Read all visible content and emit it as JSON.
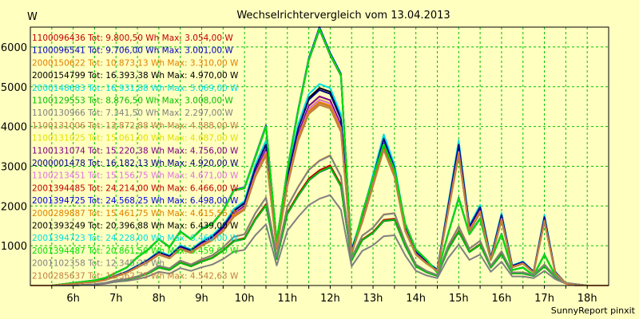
{
  "chart_data": {
    "type": "line",
    "title": "Wechselrichtervergleich vom 13.04.2013",
    "ylabel": "W",
    "xlabel": "",
    "ylim": [
      0,
      6500
    ],
    "xlim": [
      "05:30",
      "19:00"
    ],
    "y_ticks": [
      "1000",
      "2000",
      "3000",
      "4000",
      "5000",
      "6000"
    ],
    "x_ticks": [
      "6h",
      "7h",
      "8h",
      "9h",
      "10h",
      "11h",
      "12h",
      "13h",
      "14h",
      "15h",
      "16h",
      "17h",
      "18h"
    ],
    "grid": true,
    "background": "#ffffc0",
    "grid_color": "#00c000",
    "legend_position": "top-left",
    "credit": "SunnyReport pinxit",
    "series": [
      {
        "name": "1100096436 Tot: 9.800,50 Wh Max: 3.054,00 W",
        "color": "#c00000",
        "max": 3054,
        "profile": "A"
      },
      {
        "name": "1100096541 Tot: 9.706,00 Wh Max: 3.001,00 W",
        "color": "#0000c0",
        "max": 3001,
        "profile": "A"
      },
      {
        "name": "2000150622 Tot: 10.873,13 Wh Max: 3.310,00 W",
        "color": "#e08000",
        "max": 3310,
        "profile": "A"
      },
      {
        "name": "2000154799 Tot: 16.393,38 Wh Max: 4.970,00 W",
        "color": "#000000",
        "max": 4970,
        "profile": "B"
      },
      {
        "name": "2000148683 Tot: 16.931,88 Wh Max: 5.069,00 W",
        "color": "#00e0e0",
        "max": 5069,
        "profile": "B"
      },
      {
        "name": "1100129553 Tot: 8.876,50 Wh Max: 3.008,00 W",
        "color": "#00c000",
        "max": 3008,
        "profile": "A"
      },
      {
        "name": "1100130966 Tot: 7.341,50 Wh Max: 2.297,00 W",
        "color": "#808080",
        "max": 2297,
        "profile": "A"
      },
      {
        "name": "1100131006 Tot: 13.872,88 Wh Max: 4.588,00 W",
        "color": "#c08040",
        "max": 4588,
        "profile": "B"
      },
      {
        "name": "1100131025 Tot: 15.061,00 Wh Max: 4.687,00 W",
        "color": "#e0e000",
        "max": 4687,
        "profile": "B"
      },
      {
        "name": "1100131074 Tot: 15.220,38 Wh Max: 4.756,00 W",
        "color": "#800080",
        "max": 4756,
        "profile": "B"
      },
      {
        "name": "2000001478 Tot: 16.182,13 Wh Max: 4.920,00 W",
        "color": "#000080",
        "max": 4920,
        "profile": "B"
      },
      {
        "name": "1100213451 Tot: 15.156,75 Wh Max: 4.671,00 W",
        "color": "#e070e0",
        "max": 4671,
        "profile": "B"
      },
      {
        "name": "2001394485 Tot: 24.214,00 Wh Max: 6.466,00 W",
        "color": "#c00000",
        "max": 6466,
        "profile": "C"
      },
      {
        "name": "2001394725 Tot: 24.568,25 Wh Max: 6.498,00 W",
        "color": "#0000e0",
        "max": 6498,
        "profile": "C"
      },
      {
        "name": "2000289887 Tot: 15.461,75 Wh Max: 4.615,56 W",
        "color": "#e08000",
        "max": 4615.56,
        "profile": "B"
      },
      {
        "name": "2001393249 Tot: 20.396,88 Wh Max: 6.439,00 W",
        "color": "#000000",
        "max": 6439,
        "profile": "C"
      },
      {
        "name": "2001394723 Tot: 24.228,00 Wh Max: 6.460,00 W",
        "color": "#00e0e0",
        "max": 6460,
        "profile": "C"
      },
      {
        "name": "2001394487 Tot: 20.861,50 Wh Max: 6.459,00 W",
        "color": "#00e000",
        "max": 6459,
        "profile": "C"
      },
      {
        "name": "2001102358 Tot: 12.345,25 Wh",
        "color": "#808080",
        "max": 3300,
        "profile": "A"
      },
      {
        "name": "2100285637 Tot: 16.362,75 Wh Max: 4.542,63 W",
        "color": "#c08040",
        "max": 4542.63,
        "profile": "B"
      }
    ],
    "profiles": {
      "x": [
        "05:30",
        "06:00",
        "06:30",
        "07:00",
        "07:15",
        "07:30",
        "07:45",
        "08:00",
        "08:15",
        "08:30",
        "08:45",
        "09:00",
        "09:15",
        "09:30",
        "09:45",
        "10:00",
        "10:15",
        "10:30",
        "10:45",
        "11:00",
        "11:15",
        "11:30",
        "11:45",
        "12:00",
        "12:15",
        "12:30",
        "12:45",
        "13:00",
        "13:15",
        "13:30",
        "13:45",
        "14:00",
        "14:15",
        "14:30",
        "14:45",
        "15:00",
        "15:15",
        "15:30",
        "15:45",
        "16:00",
        "16:15",
        "16:30",
        "16:45",
        "17:00",
        "17:15",
        "17:30",
        "17:45",
        "18:00",
        "18:15",
        "18:30",
        "19:00"
      ],
      "A": [
        0.0,
        0.0,
        0.0,
        0.01,
        0.02,
        0.04,
        0.05,
        0.07,
        0.1,
        0.15,
        0.13,
        0.19,
        0.16,
        0.2,
        0.23,
        0.29,
        0.37,
        0.39,
        0.55,
        0.67,
        0.22,
        0.6,
        0.75,
        0.88,
        0.95,
        0.99,
        0.83,
        0.21,
        0.38,
        0.44,
        0.54,
        0.55,
        0.33,
        0.16,
        0.11,
        0.08,
        0.3,
        0.45,
        0.28,
        0.34,
        0.15,
        0.26,
        0.1,
        0.1,
        0.08,
        0.16,
        0.07,
        0.02,
        0.01,
        0.0,
        0.0
      ],
      "B": [
        0.0,
        0.0,
        0.01,
        0.02,
        0.03,
        0.05,
        0.07,
        0.1,
        0.13,
        0.17,
        0.15,
        0.2,
        0.18,
        0.22,
        0.25,
        0.3,
        0.38,
        0.42,
        0.6,
        0.72,
        0.2,
        0.55,
        0.8,
        0.95,
        1.0,
        0.98,
        0.85,
        0.18,
        0.35,
        0.55,
        0.75,
        0.6,
        0.3,
        0.17,
        0.12,
        0.08,
        0.4,
        0.72,
        0.3,
        0.4,
        0.14,
        0.36,
        0.1,
        0.12,
        0.07,
        0.35,
        0.07,
        0.01,
        0.0,
        0.0,
        0.0
      ],
      "C": [
        0.0,
        0.0,
        0.01,
        0.02,
        0.03,
        0.05,
        0.07,
        0.11,
        0.14,
        0.18,
        0.15,
        0.21,
        0.18,
        0.22,
        0.24,
        0.29,
        0.37,
        0.38,
        0.5,
        0.62,
        0.17,
        0.45,
        0.68,
        0.88,
        1.0,
        0.9,
        0.82,
        0.12,
        0.28,
        0.42,
        0.55,
        0.45,
        0.24,
        0.14,
        0.1,
        0.05,
        0.2,
        0.34,
        0.2,
        0.26,
        0.1,
        0.2,
        0.06,
        0.07,
        0.04,
        0.12,
        0.04,
        0.01,
        0.0,
        0.0,
        0.0
      ]
    }
  }
}
